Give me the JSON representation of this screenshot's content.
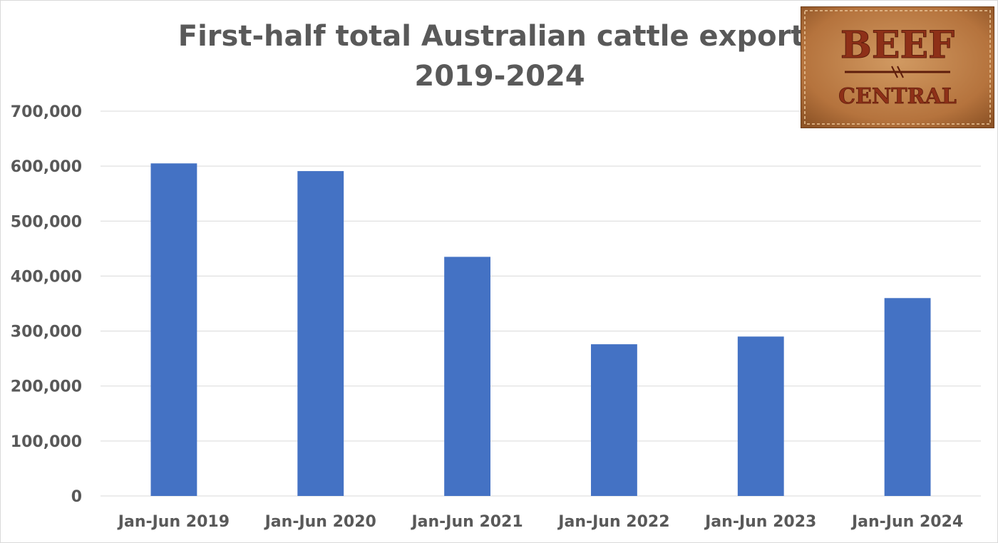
{
  "chart_data": {
    "type": "bar",
    "title": [
      "First-half total Australian cattle exports",
      "2019-2024"
    ],
    "categories": [
      "Jan-Jun 2019",
      "Jan-Jun 2020",
      "Jan-Jun 2021",
      "Jan-Jun 2022",
      "Jan-Jun 2023",
      "Jan-Jun 2024"
    ],
    "series": [
      {
        "values": [
          605000,
          591000,
          435000,
          276000,
          290000,
          360000
        ]
      }
    ],
    "ylim": [
      0,
      700000
    ],
    "yticks": [
      "0",
      "100,000",
      "200,000",
      "300,000",
      "400,000",
      "500,000",
      "600,000",
      "700,000"
    ],
    "xlabel": "",
    "ylabel": "",
    "grid": true,
    "legend": "none",
    "bar_color": "#4472c4",
    "grid_color": "#d9d9d9"
  },
  "logo": {
    "line1": "BEEF",
    "line2": "CENTRAL",
    "leather_color": "#b5733d",
    "text_color": "#8e3018"
  }
}
